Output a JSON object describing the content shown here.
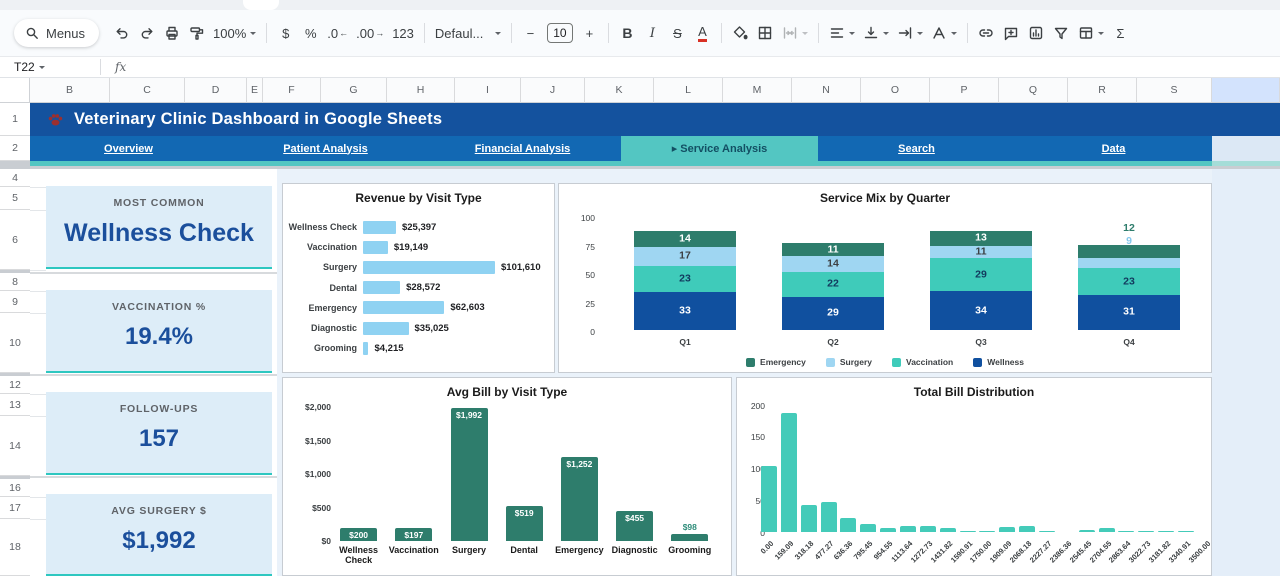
{
  "app": {
    "name_box": "T22",
    "fx_label": "fx"
  },
  "toolbar": {
    "menus": "Menus",
    "zoom": "100%",
    "currency": "$",
    "percent": "%",
    "dec_decrease": ".0",
    "dec_increase": ".00",
    "num_format": "123",
    "font": "Defaul...",
    "minus": "−",
    "font_size": "10",
    "plus": "+",
    "bold": "B",
    "italic": "I",
    "strikethrough": "S",
    "text_color": "A",
    "sigma": "Σ"
  },
  "grid": {
    "columns": [
      "B",
      "C",
      "D",
      "E",
      "F",
      "G",
      "H",
      "I",
      "J",
      "K",
      "L",
      "M",
      "N",
      "O",
      "P",
      "Q",
      "R",
      "S"
    ],
    "rows": [
      "1",
      "2",
      "4",
      "5",
      "6",
      "8",
      "9",
      "10",
      "12",
      "13",
      "14",
      "16",
      "17",
      "18"
    ]
  },
  "banner": {
    "title": "Veterinary Clinic Dashboard in Google Sheets"
  },
  "nav": {
    "active_prefix": "▸ ",
    "tabs": [
      {
        "label": "Overview",
        "active": false
      },
      {
        "label": "Patient Analysis",
        "active": false
      },
      {
        "label": "Financial Analysis",
        "active": false
      },
      {
        "label": "Service Analysis",
        "active": true
      },
      {
        "label": "Search",
        "active": false
      },
      {
        "label": "Data",
        "active": false
      }
    ]
  },
  "kpis": [
    {
      "label": "MOST COMMON",
      "value": "Wellness Check"
    },
    {
      "label": "VACCINATION %",
      "value": "19.4%"
    },
    {
      "label": "FOLLOW-UPS",
      "value": "157"
    },
    {
      "label": "AVG SURGERY $",
      "value": "$1,992"
    }
  ],
  "chart_data": [
    {
      "type": "bar",
      "orientation": "horizontal",
      "title": "Revenue by Visit Type",
      "categories": [
        "Wellness Check",
        "Vaccination",
        "Surgery",
        "Dental",
        "Emergency",
        "Diagnostic",
        "Grooming"
      ],
      "values": [
        25397,
        19149,
        101610,
        28572,
        62603,
        35025,
        4215
      ],
      "labels": [
        "$25,397",
        "$19,149",
        "$101,610",
        "$28,572",
        "$62,603",
        "$35,025",
        "$4,215"
      ],
      "bar_color": "#8fd2f2",
      "xlim": [
        0,
        101610
      ],
      "grid": false
    },
    {
      "type": "bar",
      "stacked": true,
      "title": "Service Mix by Quarter",
      "categories": [
        "Q1",
        "Q2",
        "Q3",
        "Q4"
      ],
      "series": [
        {
          "name": "Wellness",
          "color": "#10509f",
          "label_color": "#ffffff",
          "out_color": "#10509f",
          "values": [
            33,
            29,
            34,
            31
          ],
          "label_outside": [
            false,
            false,
            false,
            false
          ]
        },
        {
          "name": "Vaccination",
          "color": "#3fcbba",
          "label_color": "#123a5e",
          "out_color": "#3fcbba",
          "values": [
            23,
            22,
            29,
            23
          ],
          "label_outside": [
            false,
            false,
            false,
            false
          ]
        },
        {
          "name": "Surgery",
          "color": "#9fd6f2",
          "label_color": "#3c4043",
          "out_color": "#85c8ec",
          "values": [
            17,
            14,
            11,
            9
          ],
          "label_outside": [
            false,
            false,
            false,
            true
          ]
        },
        {
          "name": "Emergency",
          "color": "#2e7d6c",
          "label_color": "#ffffff",
          "out_color": "#2e7d6c",
          "values": [
            14,
            11,
            13,
            12
          ],
          "label_outside": [
            false,
            false,
            false,
            true
          ]
        }
      ],
      "legend": [
        "Emergency",
        "Surgery",
        "Vaccination",
        "Wellness"
      ],
      "legend_position": "bottom",
      "yticks": [
        0,
        25,
        50,
        75,
        100
      ],
      "ylim": [
        0,
        100
      ],
      "grid": false
    },
    {
      "type": "bar",
      "title": "Avg Bill by Visit Type",
      "categories": [
        "Wellness Check",
        "Vaccination",
        "Surgery",
        "Dental",
        "Emergency",
        "Diagnostic",
        "Grooming"
      ],
      "values": [
        200,
        197,
        1992,
        519,
        1252,
        455,
        98
      ],
      "labels": [
        "$200",
        "$197",
        "$1,992",
        "$519",
        "$1,252",
        "$455",
        "$98"
      ],
      "bar_color": "#2e7d6c",
      "label_color_inside": "#ffffff",
      "label_color_outside": "#2e8d7a",
      "yticks": [
        "$0",
        "$500",
        "$1,000",
        "$1,500",
        "$2,000"
      ],
      "ylim": [
        0,
        2000
      ],
      "grid": false
    },
    {
      "type": "histogram",
      "title": "Total Bill Distribution",
      "bin_labels": [
        "0.00",
        "159.09",
        "318.18",
        "477.27",
        "636.36",
        "795.45",
        "954.55",
        "1113.64",
        "1272.73",
        "1431.82",
        "1590.91",
        "1750.00",
        "1909.09",
        "2068.18",
        "2227.27",
        "2386.36",
        "2545.45",
        "2704.55",
        "2863.64",
        "3022.73",
        "3181.82",
        "3340.91",
        "3500.00"
      ],
      "values": [
        104,
        188,
        42,
        48,
        22,
        12,
        6,
        10,
        10,
        6,
        2,
        2,
        8,
        9,
        2,
        0,
        3,
        6,
        2,
        2,
        2,
        2
      ],
      "bar_color": "#44cbb9",
      "yticks": [
        0,
        50,
        100,
        150,
        200
      ],
      "ylim": [
        0,
        200
      ],
      "grid": false
    }
  ],
  "colors": {
    "banner_bg": "#14529e",
    "nav_bg": "#1268b3",
    "nav_active_bg": "#53c6c2",
    "accent_teal": "#2ec7c0",
    "kpi_bg": "#ddedf8",
    "kpi_value": "#1b4f9c",
    "selected_column_header": "#d3e3fd"
  }
}
